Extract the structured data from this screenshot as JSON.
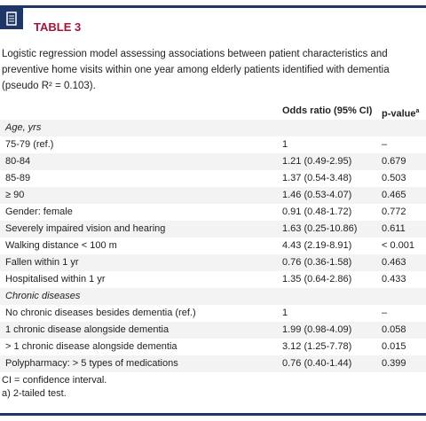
{
  "header": {
    "title": "TABLE 3"
  },
  "caption": "Logistic regression model assessing associations between patient characteristics and preventive home visits within one year among elderly patients identified with dementia (pseudo R² = 0.103).",
  "table": {
    "columns": {
      "or": "Odds ratio (95% CI)",
      "p": "p-value",
      "p_note": "a"
    },
    "rows": [
      {
        "heading": "Age, yrs"
      },
      {
        "label": "75-79 (ref.)",
        "or": "1",
        "p": "–"
      },
      {
        "label": "80-84",
        "or": "1.21 (0.49-2.95)",
        "p": "0.679"
      },
      {
        "label": "85-89",
        "or": "1.37 (0.54-3.48)",
        "p": "0.503"
      },
      {
        "label": "≥ 90",
        "or": "1.46 (0.53-4.07)",
        "p": "0.465"
      },
      {
        "label": "Gender: female",
        "or": "0.91 (0.48-1.72)",
        "p": "0.772"
      },
      {
        "label": "Severely impaired vision and hearing",
        "or": "1.63 (0.25-10.86)",
        "p": "0.611"
      },
      {
        "label": "Walking distance < 100 m",
        "or": "4.43 (2.19-8.91)",
        "p": "< 0.001"
      },
      {
        "label": "Fallen within 1 yr",
        "or": "0.76 (0.36-1.58)",
        "p": "0.463"
      },
      {
        "label": "Hospitalised within 1 yr",
        "or": "1.35 (0.64-2.86)",
        "p": "0.433"
      },
      {
        "heading": "Chronic diseases"
      },
      {
        "label": "No chronic diseases besides dementia (ref.)",
        "or": "1",
        "p": "–"
      },
      {
        "label": "1 chronic disease alongside dementia",
        "or": "1.99 (0.98-4.09)",
        "p": "0.058"
      },
      {
        "label": "> 1 chronic disease alongside dementia",
        "or": "3.12 (1.25-7.78)",
        "p": "0.015"
      },
      {
        "label": "Polypharmacy: > 5 types of medications",
        "or": "0.76 (0.40-1.44)",
        "p": "0.399"
      }
    ]
  },
  "footnotes": [
    "CI = confidence interval.",
    "a) 2-tailed test."
  ]
}
